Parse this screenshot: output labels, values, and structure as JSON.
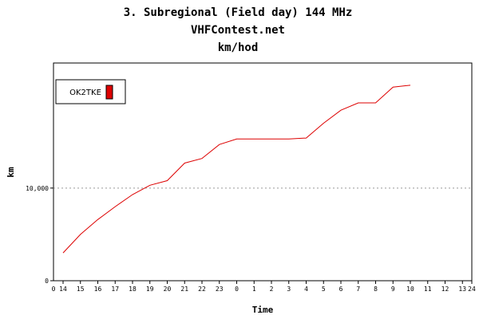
{
  "chart_data": {
    "type": "line",
    "title": "3. Subregional (Field day) 144 MHz",
    "subtitle": "VHFContest.net",
    "subtitle2": "km/hod",
    "xlabel": "Time",
    "ylabel": "km",
    "x_ticks": [
      "14",
      "15",
      "16",
      "17",
      "18",
      "19",
      "20",
      "21",
      "22",
      "23",
      "0",
      "1",
      "2",
      "3",
      "4",
      "5",
      "6",
      "7",
      "8",
      "9",
      "10",
      "11",
      "12",
      "13",
      "24"
    ],
    "x_tick_first": "0",
    "y_ticks": [
      {
        "value": 0,
        "label": "0"
      },
      {
        "value": 10000,
        "label": "10,000"
      }
    ],
    "ylim": [
      0,
      23500
    ],
    "grid": "horizontal-dotted",
    "legend_placement": "top-left",
    "colors": {
      "series": "#dd0000",
      "axis": "#000000",
      "grid": "#999999",
      "background": "#ffffff"
    },
    "series": [
      {
        "name": "OK2TKE",
        "x": [
          "14:00",
          "15:00",
          "16:00",
          "17:00",
          "18:00",
          "19:00",
          "20:00",
          "21:00",
          "22:00",
          "23:00",
          "0:00",
          "1:00",
          "2:00",
          "3:00",
          "4:00",
          "5:00",
          "6:00",
          "7:00",
          "8:00",
          "9:00",
          "10:00"
        ],
        "x_index": [
          0,
          1,
          2,
          3,
          4,
          5,
          6,
          7,
          8,
          9,
          10,
          11,
          12,
          13,
          14,
          15,
          16,
          17,
          18,
          19,
          20
        ],
        "values": [
          3000,
          5000,
          6600,
          8000,
          9300,
          10300,
          10800,
          12700,
          13200,
          14700,
          15300,
          15300,
          15300,
          15300,
          15400,
          17000,
          18400,
          19200,
          19200,
          20900,
          21100
        ]
      }
    ]
  }
}
